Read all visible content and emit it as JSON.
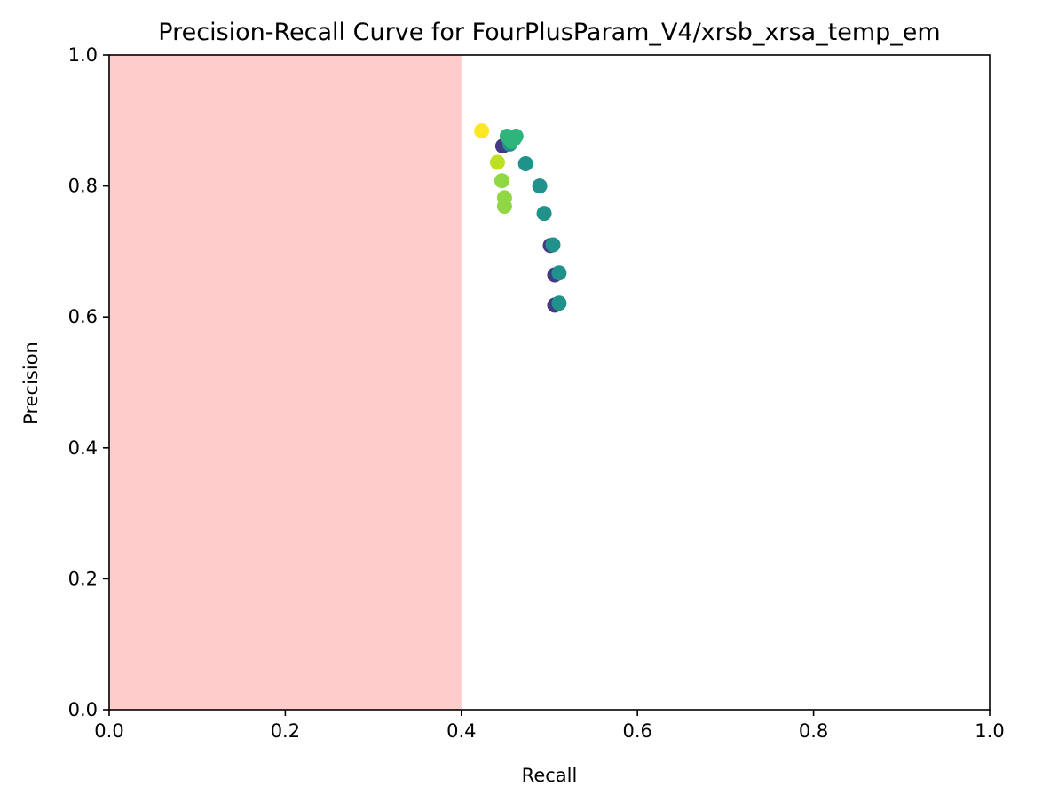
{
  "chart_data": {
    "type": "scatter",
    "title": "Precision-Recall Curve for FourPlusParam_V4/xrsb_xrsa_temp_em",
    "xlabel": "Recall",
    "ylabel": "Precision",
    "xlim": [
      0.0,
      1.0
    ],
    "ylim": [
      0.0,
      1.0
    ],
    "x_ticks": [
      "0.0",
      "0.2",
      "0.4",
      "0.6",
      "0.8",
      "1.0"
    ],
    "y_ticks": [
      "0.0",
      "0.2",
      "0.4",
      "0.6",
      "0.8",
      "1.0"
    ],
    "grid": false,
    "legend": "none",
    "shaded_region": {
      "x_start": 0.0,
      "x_end": 0.4,
      "color": "#ff9a9a",
      "opacity": 0.5
    },
    "colors": {
      "dark_purple": "#443983",
      "teal": "#21918c",
      "green": "#2fb47c",
      "yellow_green": "#8fd744",
      "lime": "#bddf26",
      "yellow": "#fde725"
    },
    "points": [
      {
        "x": 0.506,
        "y": 0.618,
        "color": "dark_purple"
      },
      {
        "x": 0.506,
        "y": 0.664,
        "color": "dark_purple"
      },
      {
        "x": 0.501,
        "y": 0.709,
        "color": "dark_purple"
      },
      {
        "x": 0.447,
        "y": 0.861,
        "color": "dark_purple"
      },
      {
        "x": 0.511,
        "y": 0.621,
        "color": "teal"
      },
      {
        "x": 0.511,
        "y": 0.667,
        "color": "teal"
      },
      {
        "x": 0.504,
        "y": 0.71,
        "color": "teal"
      },
      {
        "x": 0.494,
        "y": 0.758,
        "color": "teal"
      },
      {
        "x": 0.489,
        "y": 0.8,
        "color": "teal"
      },
      {
        "x": 0.473,
        "y": 0.834,
        "color": "teal"
      },
      {
        "x": 0.455,
        "y": 0.864,
        "color": "teal"
      },
      {
        "x": 0.452,
        "y": 0.876,
        "color": "green"
      },
      {
        "x": 0.457,
        "y": 0.868,
        "color": "green"
      },
      {
        "x": 0.46,
        "y": 0.872,
        "color": "green"
      },
      {
        "x": 0.462,
        "y": 0.876,
        "color": "green"
      },
      {
        "x": 0.449,
        "y": 0.769,
        "color": "yellow_green"
      },
      {
        "x": 0.449,
        "y": 0.782,
        "color": "yellow_green"
      },
      {
        "x": 0.446,
        "y": 0.808,
        "color": "yellow_green"
      },
      {
        "x": 0.441,
        "y": 0.836,
        "color": "lime"
      },
      {
        "x": 0.423,
        "y": 0.884,
        "color": "yellow"
      }
    ]
  }
}
